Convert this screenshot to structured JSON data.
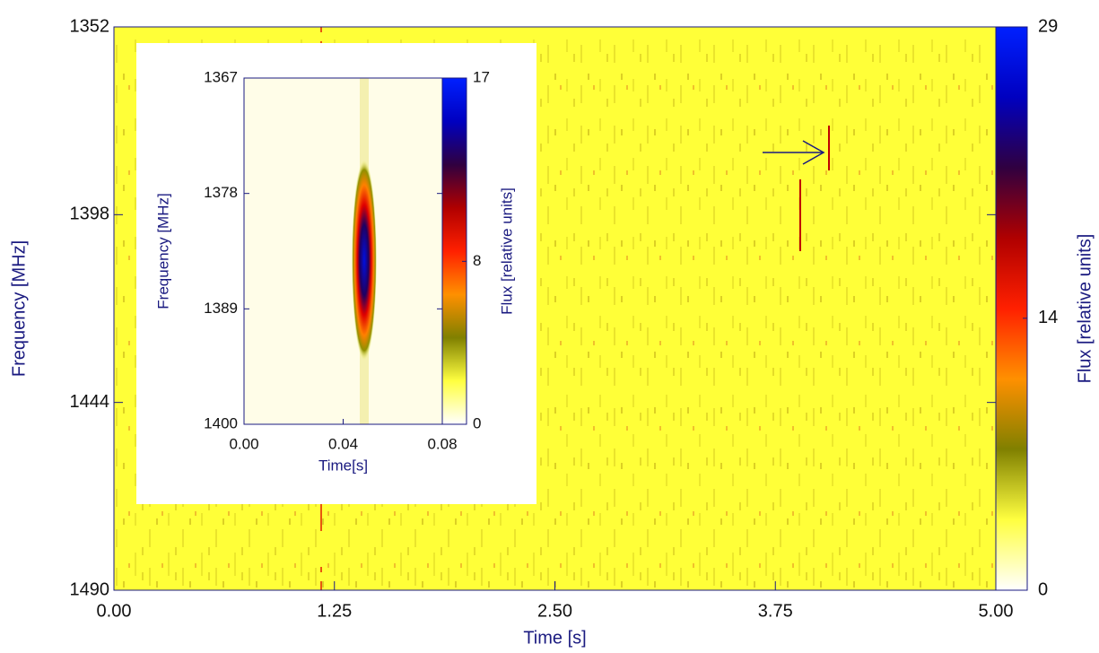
{
  "chart_data": [
    {
      "type": "heatmap",
      "xlabel": "Time [s]",
      "ylabel": "Frequency [MHz]",
      "xlim": [
        0,
        5
      ],
      "xticks": [
        {
          "value": 0,
          "label": "0.00"
        },
        1.25,
        {
          "value": 2.5,
          "label": "2.50"
        },
        3.75,
        {
          "value": 5,
          "label": "5.00"
        }
      ],
      "ylim": [
        1352,
        1490
      ],
      "yticks": [
        1352,
        1398,
        1444,
        1490
      ],
      "y_reversed": true,
      "colorbar": {
        "label": "Flux [relative units]",
        "lim": [
          0,
          29
        ],
        "ticks": [
          0,
          14,
          29
        ]
      },
      "colormap": [
        "#ffffff",
        "#ffff40",
        "#808000",
        "#ff9000",
        "#ff2000",
        "#b00000",
        "#300040",
        "#0000c0",
        "#0020ff"
      ]
    },
    {
      "type": "heatmap",
      "xlabel": "Time[s]",
      "ylabel": "Frequency [MHz]",
      "xlim": [
        0,
        0.08
      ],
      "xticks": [
        {
          "value": 0,
          "label": "0.00"
        },
        0.04,
        0.08
      ],
      "ylim": [
        1367,
        1400
      ],
      "yticks": [
        1367,
        1378,
        1389,
        1400
      ],
      "y_reversed": true,
      "colorbar": {
        "label": "Flux [relative units]",
        "lim": [
          0,
          17
        ],
        "ticks": [
          0,
          8,
          17
        ]
      },
      "colormap": [
        "#ffffff",
        "#ffff40",
        "#808000",
        "#ff9000",
        "#ff2000",
        "#b00000",
        "#300040",
        "#0000c0",
        "#0020ff"
      ]
    }
  ]
}
